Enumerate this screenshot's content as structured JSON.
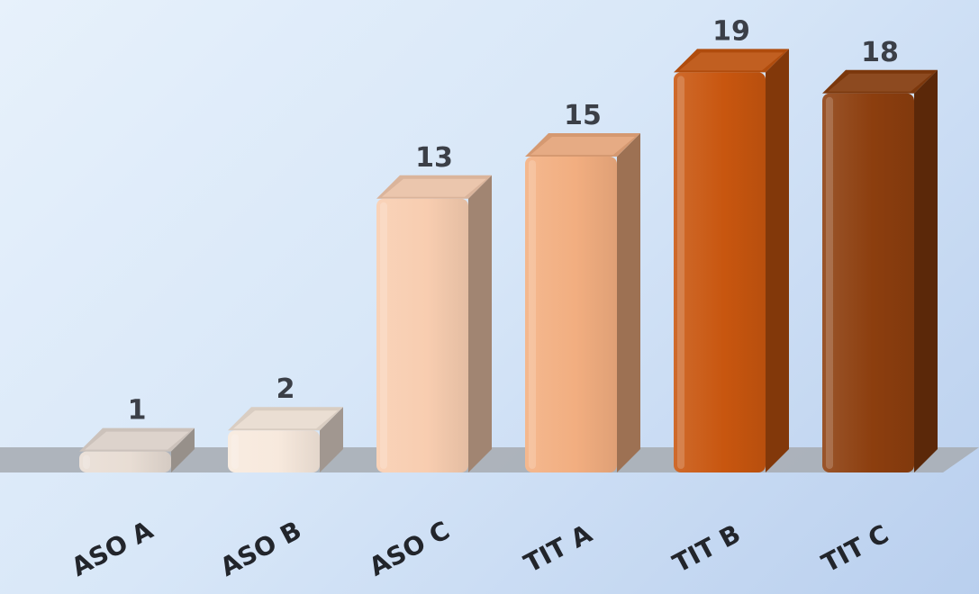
{
  "chart_data": {
    "type": "bar",
    "categories": [
      "ASO A",
      "ASO B",
      "ASO C",
      "TIT A",
      "TIT B",
      "TIT C"
    ],
    "values": [
      1,
      2,
      13,
      15,
      19,
      18
    ],
    "colors": [
      "#e8ddd4",
      "#f7e9dd",
      "#f8cdb0",
      "#f2ae80",
      "#c8560f",
      "#8c3e0e"
    ],
    "data_labels": [
      "1",
      "2",
      "13",
      "15",
      "19",
      "18"
    ],
    "title": "",
    "xlabel": "",
    "ylabel": "",
    "ylim": [
      0,
      20
    ],
    "grid": false,
    "legend": "none",
    "style": "3d-beveled-columns"
  }
}
